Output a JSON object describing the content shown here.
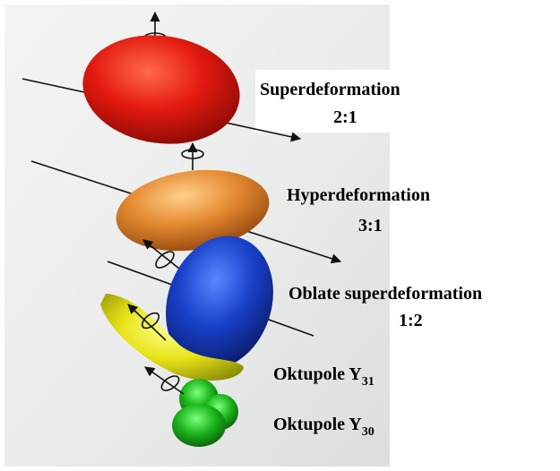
{
  "shapes": [
    {
      "name": "Superdeformation",
      "ratio": "2:1"
    },
    {
      "name": "Hyperdeformation",
      "ratio": "3:1"
    },
    {
      "name": "Oblate superdeformation",
      "ratio": "1:2"
    }
  ],
  "octupoles": [
    {
      "text": "Oktupole Y",
      "sub": "31"
    },
    {
      "text": "Oktupole Y",
      "sub": "30"
    }
  ]
}
